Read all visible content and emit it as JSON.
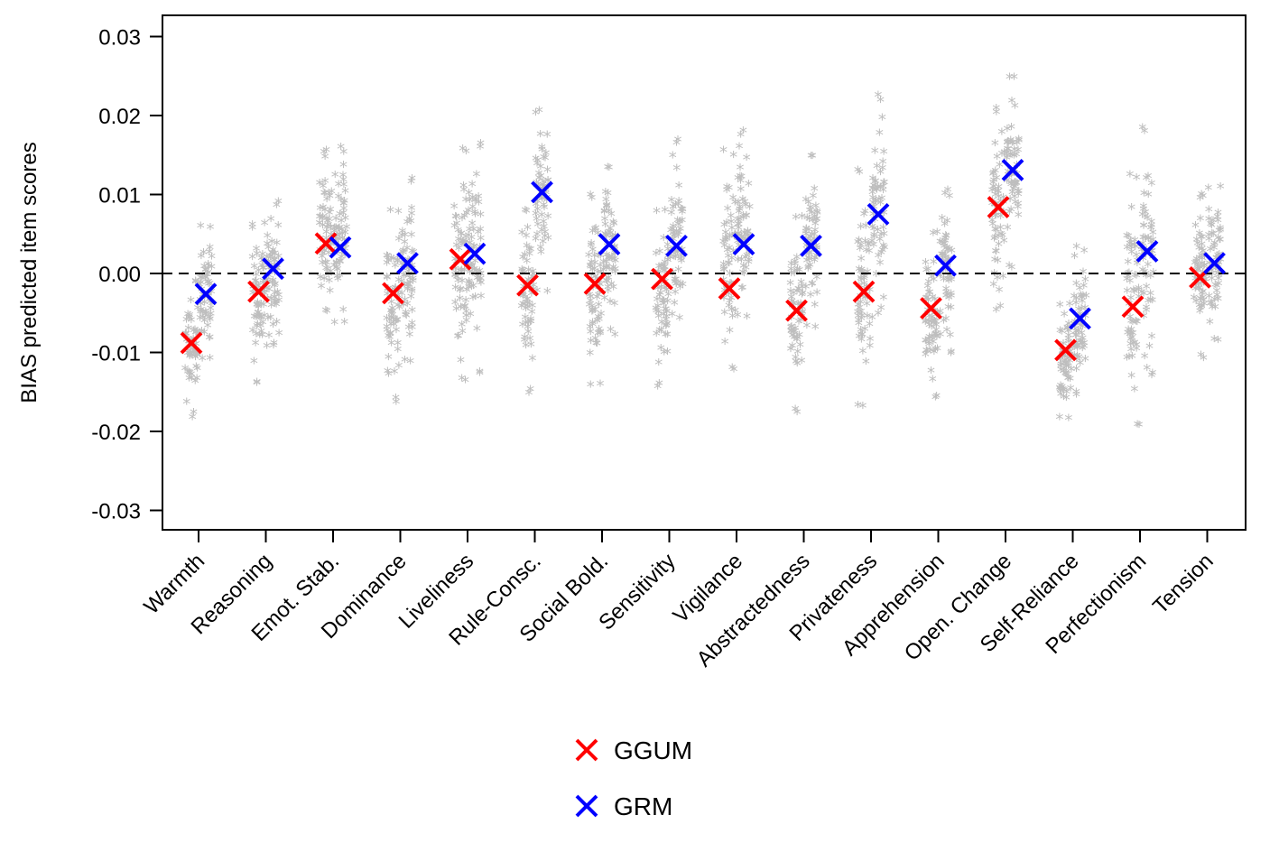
{
  "chart_data": {
    "type": "scatter",
    "ylabel": "BIAS predicted item scores",
    "xlabel": "",
    "title": "",
    "ylim": [
      -0.03,
      0.03
    ],
    "yticks": [
      0.03,
      0.02,
      0.01,
      0.0,
      -0.01,
      -0.02,
      -0.03
    ],
    "ytick_labels": [
      "0.03",
      "0.02",
      "0.01",
      "0.00",
      "-0.01",
      "-0.02",
      "-0.03"
    ],
    "reference_line": {
      "y": 0,
      "style": "dashed"
    },
    "categories": [
      "Warmth",
      "Reasoning",
      "Emot. Stab.",
      "Dominance",
      "Liveliness",
      "Rule-Consc.",
      "Social Bold.",
      "Sensitivity",
      "Vigilance",
      "Abstractedness",
      "Privateness",
      "Apprehension",
      "Open. Change",
      "Self-Reliance",
      "Perfectionism",
      "Tension"
    ],
    "series": [
      {
        "name": "GGUM",
        "color": "#ff0000",
        "marker": "x",
        "values": [
          -0.0088,
          -0.0023,
          0.0038,
          -0.0025,
          0.0018,
          -0.0015,
          -0.0013,
          -0.0007,
          -0.0019,
          -0.0047,
          -0.0023,
          -0.0044,
          0.0084,
          -0.0097,
          -0.0042,
          -0.0005
        ]
      },
      {
        "name": "GRM",
        "color": "#0000ff",
        "marker": "x",
        "values": [
          -0.0026,
          0.0006,
          0.0033,
          0.0013,
          0.0025,
          0.0103,
          0.0037,
          0.0035,
          0.0037,
          0.0035,
          0.0075,
          0.001,
          0.0131,
          -0.0057,
          0.0028,
          0.0013
        ]
      }
    ],
    "item_scatter": {
      "color": "#bebebe",
      "marker": "*",
      "ggum_ranges": [
        [
          -0.0185,
          -0.0005
        ],
        [
          -0.014,
          0.0065
        ],
        [
          -0.0055,
          0.016
        ],
        [
          -0.0165,
          0.008
        ],
        [
          -0.014,
          0.016
        ],
        [
          -0.0155,
          0.0085
        ],
        [
          -0.0145,
          0.01
        ],
        [
          -0.0145,
          0.008
        ],
        [
          -0.0125,
          0.0155
        ],
        [
          -0.018,
          0.0075
        ],
        [
          -0.0175,
          0.013
        ],
        [
          -0.016,
          0.0055
        ],
        [
          -0.005,
          0.021
        ],
        [
          -0.0185,
          -0.0035
        ],
        [
          -0.0195,
          0.0125
        ],
        [
          -0.011,
          0.01
        ]
      ],
      "grm_ranges": [
        [
          -0.011,
          0.006
        ],
        [
          -0.01,
          0.009
        ],
        [
          -0.0065,
          0.016
        ],
        [
          -0.0115,
          0.012
        ],
        [
          -0.013,
          0.0165
        ],
        [
          -0.0025,
          0.021
        ],
        [
          -0.008,
          0.0135
        ],
        [
          -0.006,
          0.017
        ],
        [
          -0.006,
          0.018
        ],
        [
          -0.0075,
          0.0155
        ],
        [
          -0.006,
          0.0225
        ],
        [
          -0.0105,
          0.0105
        ],
        [
          0.0005,
          0.025
        ],
        [
          -0.0155,
          0.0035
        ],
        [
          -0.0135,
          0.0185
        ],
        [
          -0.009,
          0.011
        ]
      ]
    },
    "legend": {
      "placement": "bottom-center",
      "entries": [
        {
          "label": "GGUM",
          "color": "#ff0000"
        },
        {
          "label": "GRM",
          "color": "#0000ff"
        }
      ]
    }
  }
}
